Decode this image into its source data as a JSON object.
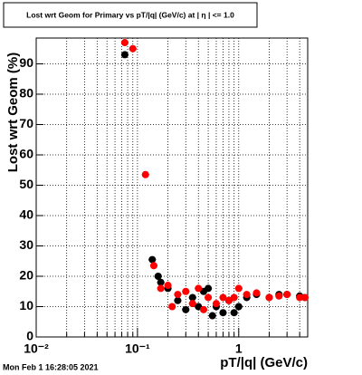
{
  "chart_data": {
    "type": "scatter",
    "title": "Lost wrt Geom for Primary vs pT/|q| (GeV/c) at | η | <= 1.0",
    "x_label": "pT/|q| (GeV/c)",
    "y_label": "Lost wrt Geom (%)",
    "timestamp": "Mon Feb  1 16:28:05 2021",
    "xlog": true,
    "xlim": [
      0.01,
      4.8
    ],
    "ylim": [
      0,
      98.5
    ],
    "xticks": [
      {
        "value": 0.01,
        "label": "10⁻²"
      },
      {
        "value": 0.1,
        "label": "10⁻¹"
      },
      1
    ],
    "xminorticks": [
      0.02,
      0.03,
      0.04,
      0.05,
      0.06,
      0.07,
      0.08,
      0.09,
      0.2,
      0.3,
      0.4,
      0.5,
      0.6,
      0.7,
      0.8,
      0.9,
      2,
      3,
      4
    ],
    "yticks": [
      0,
      10,
      20,
      30,
      40,
      50,
      60,
      70,
      80,
      90
    ],
    "grid": true,
    "series": [
      {
        "name": "black",
        "color": "#000000",
        "x": [
          0.075,
          0.14,
          0.16,
          0.17,
          0.2,
          0.25,
          0.3,
          0.35,
          0.4,
          0.45,
          0.5,
          0.55,
          0.6,
          0.7,
          0.8,
          0.9,
          1.0,
          1.2,
          1.5,
          2,
          2.5,
          3,
          4,
          4.5
        ],
        "values": [
          93,
          25.5,
          20,
          18,
          16,
          12,
          9,
          13,
          10,
          15,
          16,
          7,
          10,
          8,
          12,
          8,
          10,
          13,
          14,
          13,
          14,
          14,
          13.5,
          13
        ]
      },
      {
        "name": "red",
        "color": "#ff0000",
        "x": [
          0.075,
          0.09,
          0.12,
          0.145,
          0.17,
          0.2,
          0.22,
          0.25,
          0.3,
          0.35,
          0.4,
          0.45,
          0.5,
          0.6,
          0.7,
          0.8,
          0.9,
          1.0,
          1.2,
          1.5,
          2,
          2.5,
          3,
          4,
          4.5
        ],
        "values": [
          97,
          95,
          53.5,
          23.5,
          16,
          17,
          10,
          14,
          15,
          11,
          16,
          9,
          13,
          11,
          13,
          12,
          13,
          16,
          14,
          14.5,
          13,
          13.5,
          14,
          13,
          13
        ]
      }
    ]
  }
}
